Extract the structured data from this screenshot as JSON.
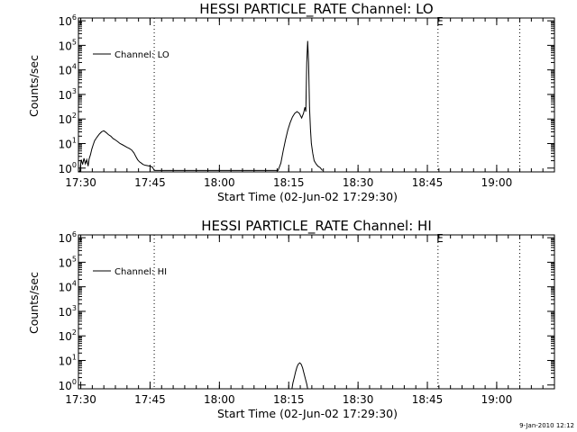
{
  "chart_data": [
    {
      "type": "line",
      "title": "HESSI PARTICLE_RATE Channel: LO",
      "xlabel": "Start Time (02-Jun-02 17:29:30)",
      "ylabel": "Counts/sec",
      "x_unit": "minutes after 17:29:30",
      "xlim": [
        0,
        103
      ],
      "ylim": [
        0.7,
        1300000
      ],
      "yscale": "log",
      "x_ticks": [
        {
          "label": "17:30",
          "value": 0.5
        },
        {
          "label": "17:45",
          "value": 15.5
        },
        {
          "label": "18:00",
          "value": 30.5
        },
        {
          "label": "18:15",
          "value": 45.5
        },
        {
          "label": "18:30",
          "value": 60.5
        },
        {
          "label": "18:45",
          "value": 75.5
        },
        {
          "label": "19:00",
          "value": 90.5
        }
      ],
      "y_ticks": [
        {
          "exp": "0",
          "value": 1
        },
        {
          "exp": "1",
          "value": 10
        },
        {
          "exp": "2",
          "value": 100
        },
        {
          "exp": "3",
          "value": 1000
        },
        {
          "exp": "4",
          "value": 10000
        },
        {
          "exp": "5",
          "value": 100000
        },
        {
          "exp": "6",
          "value": 1000000
        }
      ],
      "tick_base": "10",
      "vlines": [
        16.4,
        77.8,
        95.5
      ],
      "edge_marker": {
        "label": "E",
        "value": 78.2
      },
      "legend": {
        "position": "top-left",
        "entries": [
          "Channel: LO"
        ]
      },
      "series": [
        {
          "name": "Channel: LO",
          "x": [
            0,
            0.3,
            0.6,
            0.9,
            1.2,
            1.5,
            1.8,
            2.1,
            2.3,
            2.6,
            2.9,
            3.2,
            3.5,
            4,
            4.5,
            5,
            5.5,
            6,
            6.5,
            7,
            7.5,
            8,
            8.5,
            9,
            9.5,
            10,
            10.5,
            11,
            11.5,
            12,
            12.4,
            12.8,
            13.2,
            13.6,
            14,
            14.5,
            15,
            15.5,
            16,
            16.4,
            43.2,
            43.8,
            44.3,
            44.8,
            45.3,
            45.8,
            46.3,
            46.8,
            47.3,
            47.8,
            48.3,
            48.7,
            49,
            49.2,
            49.4,
            49.6,
            49.8,
            50,
            50.2,
            50.4,
            50.7,
            51,
            51.4,
            51.8,
            52.3,
            52.8
          ],
          "y": [
            0.7,
            0.75,
            2.2,
            1.4,
            2.5,
            1.5,
            2.2,
            1.2,
            2.3,
            3.5,
            6,
            9,
            13,
            18,
            24,
            30,
            33,
            28,
            23,
            20,
            16,
            14,
            12,
            10,
            9,
            8,
            7,
            6.3,
            5.5,
            4.2,
            3,
            2.2,
            1.8,
            1.6,
            1.4,
            1.3,
            1.25,
            1.2,
            1.1,
            0.8,
            0.8,
            1.6,
            5,
            14,
            35,
            70,
            120,
            170,
            200,
            170,
            110,
            170,
            300,
            200,
            20000,
            150000,
            20000,
            300,
            40,
            10,
            4,
            2,
            1.5,
            1.2,
            1.05,
            0.8
          ]
        }
      ]
    },
    {
      "type": "line",
      "title": "HESSI PARTICLE_RATE Channel: HI",
      "xlabel": "Start Time (02-Jun-02 17:29:30)",
      "ylabel": "Counts/sec",
      "x_unit": "minutes after 17:29:30",
      "xlim": [
        0,
        103
      ],
      "ylim": [
        0.7,
        1300000
      ],
      "yscale": "log",
      "x_ticks": [
        {
          "label": "17:30",
          "value": 0.5
        },
        {
          "label": "17:45",
          "value": 15.5
        },
        {
          "label": "18:00",
          "value": 30.5
        },
        {
          "label": "18:15",
          "value": 45.5
        },
        {
          "label": "18:30",
          "value": 60.5
        },
        {
          "label": "18:45",
          "value": 75.5
        },
        {
          "label": "19:00",
          "value": 90.5
        }
      ],
      "y_ticks": [
        {
          "exp": "0",
          "value": 1
        },
        {
          "exp": "1",
          "value": 10
        },
        {
          "exp": "2",
          "value": 100
        },
        {
          "exp": "3",
          "value": 1000
        },
        {
          "exp": "4",
          "value": 10000
        },
        {
          "exp": "5",
          "value": 100000
        },
        {
          "exp": "6",
          "value": 1000000
        }
      ],
      "tick_base": "10",
      "vlines": [
        16.4,
        77.8,
        95.5
      ],
      "edge_marker": {
        "label": "E",
        "value": 78.2
      },
      "legend": {
        "position": "top-left",
        "entries": [
          "Channel: HI"
        ]
      },
      "series": [
        {
          "name": "Channel: HI",
          "x": [
            46.2,
            46.4,
            46.7,
            47.0,
            47.3,
            47.6,
            47.9,
            48.2,
            48.5,
            48.8,
            49.1,
            49.4,
            49.6
          ],
          "y": [
            0.7,
            1.2,
            2.0,
            3.5,
            5.5,
            7.2,
            8.0,
            7.0,
            5.0,
            3.0,
            1.8,
            1.1,
            0.7
          ]
        }
      ]
    }
  ],
  "timestamp": "9-Jan-2010 12:12"
}
